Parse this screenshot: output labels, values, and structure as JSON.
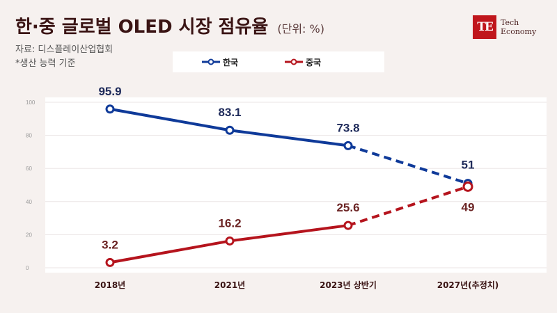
{
  "header": {
    "title": "한·중 글로벌 OLED 시장 점유율",
    "unit": "(단위: %)",
    "source": "자료: 디스플레이산업협회",
    "note": "*생산 능력 기준"
  },
  "logo": {
    "mark": "TE",
    "line1": "Tech",
    "line2": "Economy"
  },
  "chart_data": {
    "type": "line",
    "title": "한·중 글로벌 OLED 시장 점유율",
    "unit": "%",
    "categories": [
      "2018년",
      "2021년",
      "2023년 상반기",
      "2027년(추정치)"
    ],
    "ylim": [
      0,
      100
    ],
    "yticks": [
      0,
      20,
      40,
      60,
      80,
      100
    ],
    "grid": true,
    "legend_position": "top-center",
    "projected_from_index": 2,
    "series": [
      {
        "name": "한국",
        "values": [
          95.9,
          83.1,
          73.8,
          51
        ],
        "labels": [
          "95.9",
          "83.1",
          "73.8",
          "51"
        ],
        "color": "#0f3a99"
      },
      {
        "name": "중국",
        "values": [
          3.2,
          16.2,
          25.6,
          49
        ],
        "labels": [
          "3.2",
          "16.2",
          "25.6",
          "49"
        ],
        "color": "#b5141d"
      }
    ],
    "label_colors": [
      "#1e2a5a",
      "#6b2323"
    ]
  }
}
